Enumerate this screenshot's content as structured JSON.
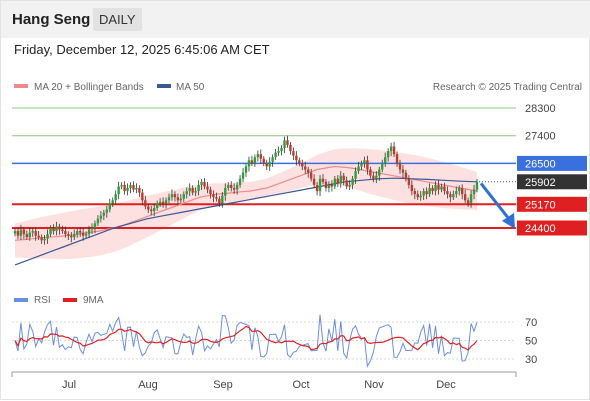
{
  "header": {
    "title": "Hang Seng",
    "timeframe": "DAILY",
    "datetime": "Friday, December 12, 2025 6:45:06 AM CET"
  },
  "legend": {
    "ma20": "MA 20 + Bollinger Bands",
    "ma50": "MA 50",
    "rsi": "RSI",
    "rsi_ma": "9MA",
    "source": "Research © 2025 Trading Central"
  },
  "colors": {
    "bull": "#2e9e3a",
    "bear": "#c0392b",
    "ma20": "#f08a8a",
    "ma50": "#3a5896",
    "bands_fill": "#fde1e1",
    "resistance": "#3a6fe0",
    "support": "#e02020",
    "target_green": "#8fc87a",
    "last_price_bg": "#333333",
    "arrow": "#2f6fd8",
    "rsi_line": "#6b8fe0",
    "rsi_ma_line": "#e02020"
  },
  "chart_data": [
    {
      "type": "candlestick",
      "title": "Hang Seng",
      "ylim": [
        23300,
        28800
      ],
      "x_ticks": [
        "Jul",
        "Aug",
        "Sep",
        "Oct",
        "Nov",
        "Dec"
      ],
      "levels": [
        {
          "value": 28300,
          "label": "28300",
          "kind": "target"
        },
        {
          "value": 27400,
          "label": "27400",
          "kind": "target"
        },
        {
          "value": 26500,
          "label": "26500",
          "kind": "resistance"
        },
        {
          "value": 25902,
          "label": "25902",
          "kind": "last"
        },
        {
          "value": 25170,
          "label": "25170",
          "kind": "support"
        },
        {
          "value": 24400,
          "label": "24400",
          "kind": "support"
        }
      ],
      "closes": [
        24300,
        24150,
        24350,
        24200,
        24100,
        24250,
        24300,
        24150,
        24100,
        24000,
        24050,
        24200,
        24400,
        24300,
        24450,
        24350,
        24300,
        24200,
        24150,
        24100,
        24200,
        24300,
        24250,
        24150,
        24200,
        24350,
        24400,
        24550,
        24700,
        24800,
        24900,
        25000,
        25200,
        25300,
        25500,
        25750,
        25800,
        25600,
        25700,
        25800,
        25650,
        25700,
        25550,
        25300,
        25100,
        25000,
        24950,
        25050,
        25200,
        25250,
        25200,
        25300,
        25400,
        25500,
        25400,
        25300,
        25350,
        25500,
        25600,
        25700,
        25550,
        25600,
        25800,
        25900,
        25750,
        25650,
        25500,
        25400,
        25350,
        25200,
        25450,
        25700,
        25800,
        25700,
        25650,
        25800,
        26000,
        26200,
        26400,
        26600,
        26500,
        26700,
        26800,
        26650,
        26500,
        26400,
        26550,
        26700,
        26850,
        26900,
        27000,
        27250,
        27100,
        26900,
        26750,
        26600,
        26500,
        26400,
        26300,
        26200,
        26000,
        25800,
        25600,
        26000,
        25900,
        25700,
        25800,
        25750,
        26000,
        25850,
        26100,
        25950,
        25750,
        25800,
        26000,
        26250,
        26400,
        26500,
        26600,
        26300,
        26100,
        26000,
        26100,
        26300,
        26500,
        26700,
        26900,
        27050,
        26800,
        26500,
        26300,
        26200,
        26000,
        25800,
        25600,
        25500,
        25400,
        25450,
        25600,
        25500,
        25700,
        25600,
        25800,
        25650,
        25750,
        25600,
        25500,
        25400,
        25500,
        25600,
        25700,
        25500,
        25300,
        25200,
        25500,
        25650,
        25902
      ],
      "ma20_approx": [
        24000,
        24020,
        24050,
        24080,
        24100,
        24120,
        24150,
        24180,
        24220,
        24260,
        24300,
        24360,
        24420,
        24500,
        24600,
        24700,
        24800,
        24900,
        25000,
        25100,
        25200,
        25300,
        25400,
        25450,
        25500,
        25520,
        25550,
        25580,
        25600,
        25650,
        25700,
        25800,
        25900,
        26000,
        26100,
        26200,
        26300,
        26350,
        26400,
        26380,
        26350,
        26300,
        26250,
        26200,
        26150,
        26100,
        26050,
        26000,
        25950,
        25900,
        25850,
        25800,
        25750,
        25700,
        25650,
        25600
      ],
      "ma50_approx": [
        23200,
        23400,
        23600,
        23800,
        24000,
        24200,
        24400,
        24550,
        24700,
        24800,
        24900,
        25000,
        25100,
        25200,
        25300,
        25400,
        25500,
        25600,
        25700,
        25800,
        25900,
        25950,
        26000,
        26020,
        26000,
        25980,
        25950,
        25920,
        25900
      ],
      "rsi_ticks": [
        70,
        50,
        30
      ],
      "rsi_ylim": [
        20,
        80
      ]
    }
  ]
}
